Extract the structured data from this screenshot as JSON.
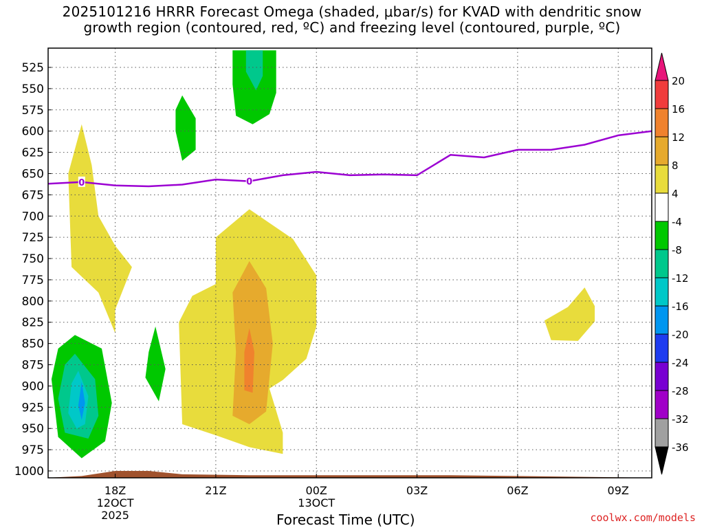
{
  "title_line1": "2025101216 HRRR Forecast Omega (shaded, μbar/s) for KVAD with dendritic snow",
  "title_line2": "growth region (contoured, red, ºC) and freezing level (contoured, purple, ºC)",
  "watermark": "coolwx.com/models",
  "chart_data": {
    "type": "heatmap",
    "title": "2025101216 HRRR Forecast Omega (shaded, μbar/s) for KVAD with dendritic snow growth region (contoured, red, ºC) and freezing level (contoured, purple, ºC)",
    "xlabel": "Forecast Time (UTC)",
    "ylabel": "",
    "y_ticks": [
      525,
      550,
      575,
      600,
      625,
      650,
      675,
      700,
      725,
      750,
      775,
      800,
      825,
      850,
      875,
      900,
      925,
      950,
      975,
      1000
    ],
    "x_ticks": [
      {
        "hour": 18,
        "lines": [
          "18Z",
          "12OCT",
          "2025"
        ]
      },
      {
        "hour": 21,
        "lines": [
          "21Z"
        ]
      },
      {
        "hour": 24,
        "lines": [
          "00Z",
          "13OCT"
        ]
      },
      {
        "hour": 27,
        "lines": [
          "03Z"
        ]
      },
      {
        "hour": 30,
        "lines": [
          "06Z"
        ]
      },
      {
        "hour": 33,
        "lines": [
          "09Z"
        ]
      }
    ],
    "colorbar": {
      "labels": [
        "20",
        "16",
        "12",
        "8",
        "4",
        "-4",
        "-8",
        "-12",
        "-16",
        "-20",
        "-24",
        "-28",
        "-32",
        "-36"
      ],
      "colors": [
        "#e8157a",
        "#f03c3c",
        "#f0822d",
        "#e6aa2d",
        "#e8dc3c",
        "#ffffff",
        "#00c800",
        "#00c88c",
        "#00c8c8",
        "#0096f0",
        "#1e3cf0",
        "#7800d2",
        "#a000c8",
        "#a0a0a0",
        "#000000"
      ]
    },
    "freezing_level": {
      "color": "#9b00d2",
      "label": "0",
      "points": [
        [
          16,
          662
        ],
        [
          17,
          660
        ],
        [
          18,
          664
        ],
        [
          19,
          665
        ],
        [
          20,
          663
        ],
        [
          21,
          657
        ],
        [
          22,
          659
        ],
        [
          23,
          652
        ],
        [
          24,
          648
        ],
        [
          25,
          652
        ],
        [
          26,
          651
        ],
        [
          27,
          652
        ],
        [
          28,
          628
        ],
        [
          29,
          631
        ],
        [
          30,
          622
        ],
        [
          31,
          622
        ],
        [
          32,
          616
        ],
        [
          33,
          605
        ],
        [
          34,
          600
        ]
      ],
      "label_hours": [
        17,
        22
      ]
    },
    "terrain": {
      "color": "#a0522d",
      "points": [
        [
          16,
          1008
        ],
        [
          17,
          1006
        ],
        [
          18,
          1000
        ],
        [
          19,
          1000
        ],
        [
          20,
          1004
        ],
        [
          22,
          1005
        ],
        [
          28,
          1005
        ],
        [
          34,
          1008
        ]
      ]
    },
    "omega_regions": [
      {
        "value": "4 to 8",
        "color": "#e8dc3c",
        "points": [
          [
            17.0,
            592
          ],
          [
            17.3,
            640
          ],
          [
            17.5,
            700
          ],
          [
            18.0,
            735
          ],
          [
            18.5,
            760
          ],
          [
            18.0,
            810
          ],
          [
            18.0,
            838
          ],
          [
            17.5,
            790
          ],
          [
            16.7,
            760
          ],
          [
            16.6,
            650
          ]
        ]
      },
      {
        "value": "4 to 8",
        "color": "#e8dc3c",
        "points": [
          [
            21.0,
            725
          ],
          [
            22.0,
            692
          ],
          [
            23.3,
            727
          ],
          [
            24.0,
            770
          ],
          [
            24.0,
            830
          ],
          [
            23.7,
            868
          ],
          [
            23.0,
            893
          ],
          [
            22.6,
            903
          ],
          [
            23.0,
            955
          ],
          [
            23.0,
            980
          ],
          [
            22.0,
            972
          ],
          [
            21.0,
            958
          ],
          [
            20.0,
            945
          ],
          [
            19.9,
            825
          ],
          [
            20.3,
            794
          ],
          [
            21.0,
            780
          ]
        ]
      },
      {
        "value": "4 to 8",
        "color": "#e8dc3c",
        "points": [
          [
            31.5,
            807
          ],
          [
            32.0,
            784
          ],
          [
            32.3,
            806
          ],
          [
            32.3,
            824
          ],
          [
            31.8,
            847
          ],
          [
            31.0,
            846
          ],
          [
            30.8,
            823
          ]
        ]
      },
      {
        "value": "8 to 12",
        "color": "#e6aa2d",
        "points": [
          [
            21.5,
            790
          ],
          [
            22.0,
            753
          ],
          [
            22.5,
            785
          ],
          [
            22.7,
            850
          ],
          [
            22.5,
            930
          ],
          [
            22.0,
            945
          ],
          [
            21.5,
            935
          ],
          [
            21.6,
            860
          ]
        ]
      },
      {
        "value": "12 to 16",
        "color": "#f0822d",
        "points": [
          [
            22.0,
            832
          ],
          [
            22.15,
            860
          ],
          [
            22.1,
            908
          ],
          [
            21.85,
            905
          ],
          [
            21.85,
            860
          ]
        ]
      },
      {
        "value": "-4 to -8",
        "color": "#00c800",
        "points": [
          [
            16.8,
            840
          ],
          [
            17.6,
            856
          ],
          [
            17.9,
            920
          ],
          [
            17.7,
            965
          ],
          [
            17.0,
            985
          ],
          [
            16.3,
            960
          ],
          [
            16.1,
            892
          ],
          [
            16.3,
            856
          ]
        ]
      },
      {
        "value": "-8 to -12",
        "color": "#00c88c",
        "points": [
          [
            16.8,
            862
          ],
          [
            17.4,
            892
          ],
          [
            17.5,
            935
          ],
          [
            17.2,
            962
          ],
          [
            16.5,
            955
          ],
          [
            16.3,
            915
          ],
          [
            16.5,
            875
          ]
        ]
      },
      {
        "value": "-12 to -16",
        "color": "#00c8c8",
        "points": [
          [
            16.9,
            882
          ],
          [
            17.2,
            912
          ],
          [
            17.1,
            945
          ],
          [
            16.85,
            950
          ],
          [
            16.6,
            932
          ],
          [
            16.7,
            897
          ]
        ]
      },
      {
        "value": "-16 to -20",
        "color": "#0096f0",
        "points": [
          [
            17.0,
            895
          ],
          [
            17.1,
            920
          ],
          [
            17.0,
            940
          ],
          [
            16.9,
            923
          ]
        ]
      },
      {
        "value": "-4 to -8",
        "color": "#00c800",
        "points": [
          [
            20.0,
            558
          ],
          [
            20.4,
            585
          ],
          [
            20.4,
            622
          ],
          [
            20.0,
            635
          ],
          [
            19.8,
            600
          ],
          [
            19.8,
            575
          ]
        ]
      },
      {
        "value": "-4 to -8",
        "color": "#00c800",
        "points": [
          [
            19.2,
            830
          ],
          [
            19.5,
            880
          ],
          [
            19.3,
            918
          ],
          [
            18.9,
            890
          ],
          [
            19.0,
            860
          ]
        ]
      },
      {
        "value": "-4 to -8",
        "color": "#00c800",
        "points": [
          [
            21.5,
            505
          ],
          [
            22.8,
            505
          ],
          [
            22.8,
            555
          ],
          [
            22.6,
            580
          ],
          [
            22.1,
            592
          ],
          [
            21.6,
            582
          ],
          [
            21.5,
            545
          ]
        ]
      },
      {
        "value": "-8 to -12",
        "color": "#00c88c",
        "points": [
          [
            21.9,
            505
          ],
          [
            22.4,
            505
          ],
          [
            22.4,
            535
          ],
          [
            22.2,
            552
          ],
          [
            21.9,
            530
          ]
        ]
      }
    ]
  }
}
